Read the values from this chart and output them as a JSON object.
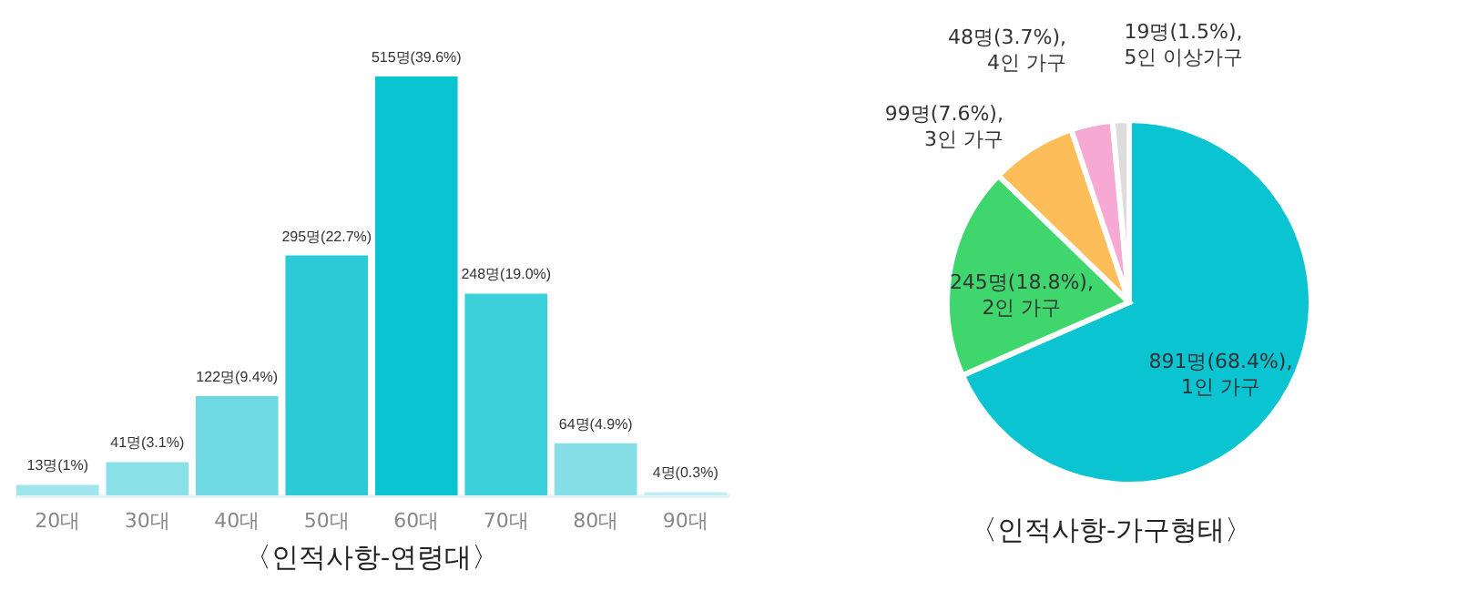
{
  "chart_data": [
    {
      "type": "bar",
      "title": "〈인적사항-연령대〉",
      "categories": [
        "20대",
        "30대",
        "40대",
        "50대",
        "60대",
        "70대",
        "80대",
        "90대"
      ],
      "values": [
        13,
        41,
        122,
        295,
        515,
        248,
        64,
        4
      ],
      "value_labels": [
        "13명(1%)",
        "41명(3.1%)",
        "122명(9.4%)",
        "295명(22.7%)",
        "515명(39.6%)",
        "248명(19.0%)",
        "64명(4.9%)",
        "4명(0.3%)"
      ],
      "colors": [
        "#9ee6ec",
        "#8ae0e7",
        "#6fd9e1",
        "#2ccad6",
        "#0bc4d1",
        "#3cd0da",
        "#84dfe6",
        "#c0eef2"
      ]
    },
    {
      "type": "pie",
      "title": "〈인적사항-가구형태〉",
      "categories": [
        "1인 가구",
        "2인 가구",
        "3인 가구",
        "4인 가구",
        "5인 이상가구"
      ],
      "values": [
        891,
        245,
        99,
        48,
        19
      ],
      "value_labels": [
        "891명(68.4%),",
        "245명(18.8%),",
        "99명(7.6%),",
        "48명(3.7%),",
        "19명(1.5%),"
      ],
      "colors": [
        "#0bc4d1",
        "#3fd66e",
        "#fdbe5a",
        "#f5a9d3",
        "#dcdcdc"
      ]
    }
  ]
}
